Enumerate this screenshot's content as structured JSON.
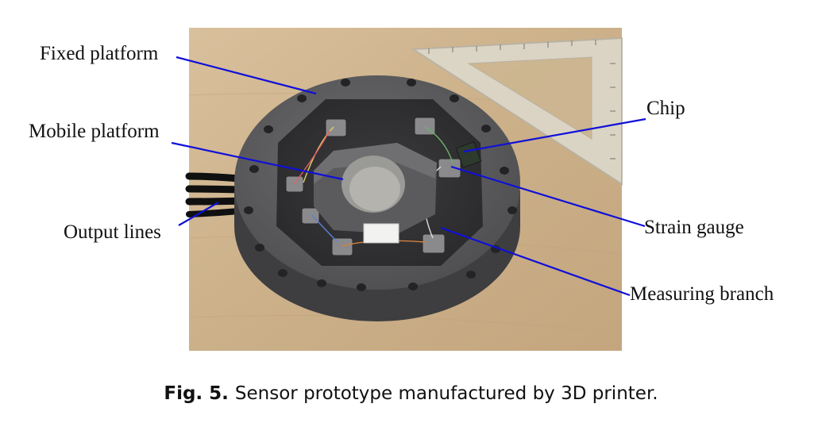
{
  "labels": {
    "fixed_platform": "Fixed platform",
    "mobile_platform": "Mobile platform",
    "output_lines": "Output lines",
    "chip": "Chip",
    "strain_gauge": "Strain gauge",
    "measuring_branch": "Measuring branch"
  },
  "caption": {
    "number": "Fig. 5.",
    "text": "Sensor prototype manufactured by 3D printer."
  },
  "colors": {
    "leader_line": "#1010d8",
    "table_wood": "#cfb48e",
    "sensor_gray": "#5a5a5c",
    "ruler": "#d8d6cc"
  }
}
